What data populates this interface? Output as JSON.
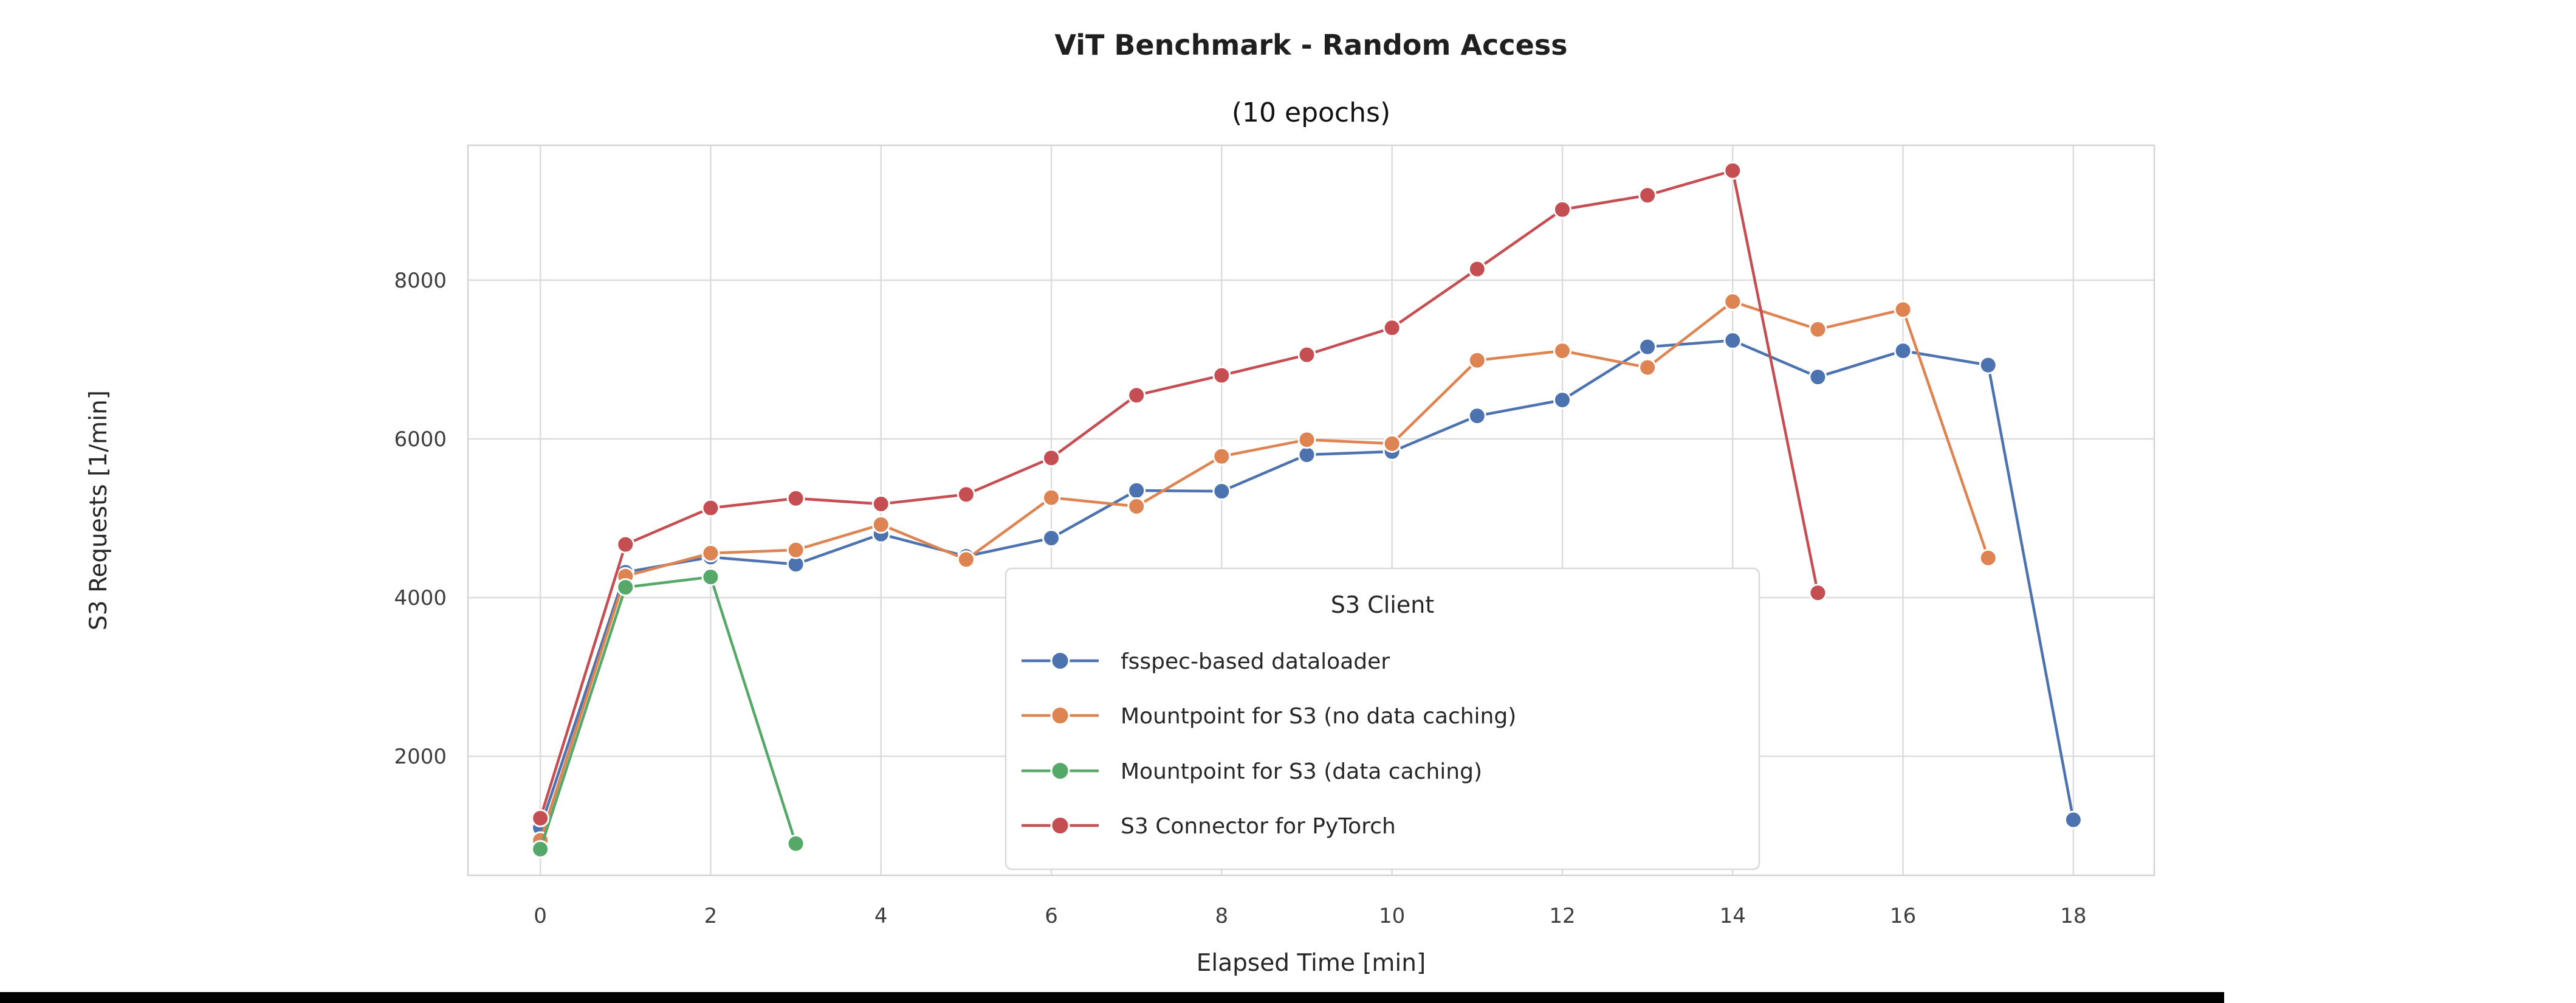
{
  "ui": {
    "background_color": "#ffffff",
    "bottom_bar_color": "#000000",
    "grid_color": "#dcdcdc",
    "spine_color": "#d4d4d4",
    "legend_border_color": "#d9d9d9",
    "legend_bg_color": "#ffffff"
  },
  "chart_data": {
    "type": "line",
    "title": "ViT Benchmark - Random Access",
    "subtitle": "(10 epochs)",
    "xlabel": "Elapsed Time [min]",
    "ylabel": "S3 Requests [1/min]",
    "xlim": [
      -0.85,
      18.95
    ],
    "ylim": [
      500,
      9700
    ],
    "xticks": [
      0,
      2,
      4,
      6,
      8,
      10,
      12,
      14,
      16,
      18
    ],
    "yticks": [
      2000,
      4000,
      6000,
      8000
    ],
    "grid": true,
    "legend": {
      "title": "S3 Client",
      "position": "lower center"
    },
    "series": [
      {
        "name": "fsspec-based dataloader",
        "color": "#4C72B0",
        "x": [
          0,
          1,
          2,
          3,
          4,
          5,
          6,
          7,
          8,
          9,
          10,
          11,
          12,
          13,
          14,
          15,
          16,
          17,
          18
        ],
        "y": [
          1100,
          4320,
          4510,
          4420,
          4800,
          4520,
          4750,
          5350,
          5340,
          5800,
          5840,
          6290,
          6490,
          7160,
          7240,
          6780,
          7110,
          6930,
          1200
        ]
      },
      {
        "name": "Mountpoint for S3 (no data caching)",
        "color": "#DD8452",
        "x": [
          0,
          1,
          2,
          3,
          4,
          5,
          6,
          7,
          8,
          9,
          10,
          11,
          12,
          13,
          14,
          15,
          16,
          17
        ],
        "y": [
          940,
          4270,
          4560,
          4600,
          4920,
          4480,
          5260,
          5150,
          5780,
          5990,
          5940,
          6990,
          7110,
          6900,
          7730,
          7380,
          7630,
          4500
        ]
      },
      {
        "name": "Mountpoint for S3 (data caching)",
        "color": "#55A868",
        "x": [
          0,
          1,
          2,
          3
        ],
        "y": [
          830,
          4130,
          4260,
          900
        ]
      },
      {
        "name": "S3 Connector for PyTorch",
        "color": "#C44E52",
        "x": [
          0,
          1,
          2,
          3,
          4,
          5,
          6,
          7,
          8,
          9,
          10,
          11,
          12,
          13,
          14,
          15
        ],
        "y": [
          1220,
          4670,
          5130,
          5250,
          5180,
          5300,
          5760,
          6550,
          6800,
          7060,
          7400,
          8140,
          8890,
          9070,
          9380,
          4060
        ]
      }
    ]
  }
}
